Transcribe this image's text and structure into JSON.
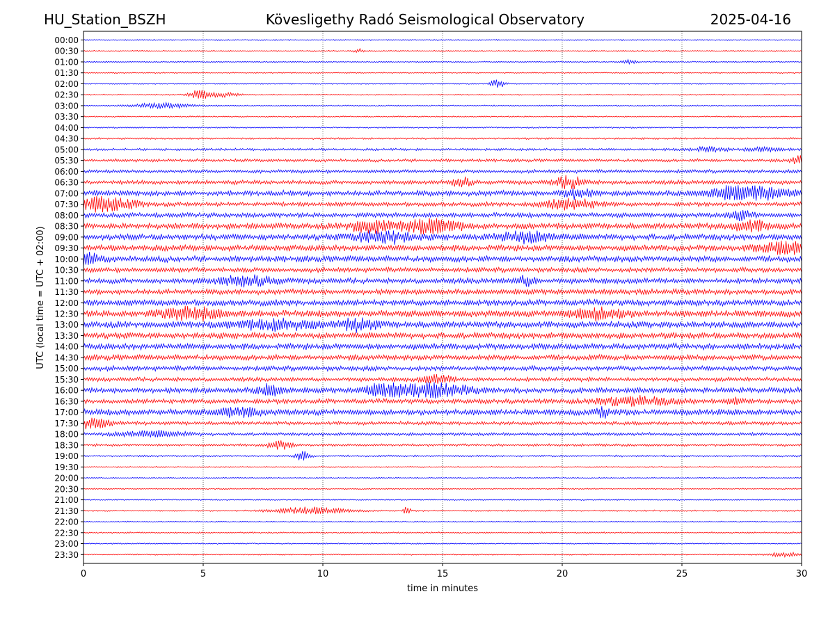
{
  "header": {
    "left": "HU_Station_BSZH",
    "center": "Kövesligethy Radó Seismological Observatory",
    "right": "2025-04-16"
  },
  "chart_data": {
    "type": "line",
    "subtype": "helicorder",
    "title": "Kövesligethy Radó Seismological Observatory",
    "xlabel": "time in minutes",
    "ylabel": "UTC (local time = UTC + 02:00)",
    "xlim": [
      0,
      30
    ],
    "xticks": [
      0,
      5,
      10,
      15,
      20,
      25,
      30
    ],
    "grid": "vertical dotted lines at 5, 10, 15, 20, 25",
    "colors": {
      "even": "#0000ff",
      "odd": "#ff0000",
      "frame": "#000000"
    },
    "rows": [
      "00:00",
      "00:30",
      "01:00",
      "01:30",
      "02:00",
      "02:30",
      "03:00",
      "03:30",
      "04:00",
      "04:30",
      "05:00",
      "05:30",
      "06:00",
      "06:30",
      "07:00",
      "07:30",
      "08:00",
      "08:30",
      "09:00",
      "09:30",
      "10:00",
      "10:30",
      "11:00",
      "11:30",
      "12:00",
      "12:30",
      "13:00",
      "13:30",
      "14:00",
      "14:30",
      "15:00",
      "15:30",
      "16:00",
      "16:30",
      "17:00",
      "17:30",
      "18:00",
      "18:30",
      "19:00",
      "19:30",
      "20:00",
      "20:30",
      "21:00",
      "21:30",
      "22:00",
      "22:30",
      "23:00",
      "23:30"
    ],
    "noise_level": [
      1,
      1,
      1,
      1,
      1,
      1,
      1,
      1,
      1.2,
      1.5,
      2,
      2.5,
      2.8,
      3.5,
      4.5,
      3.5,
      4,
      5,
      5,
      5,
      5,
      4,
      4.5,
      4.5,
      5,
      5.5,
      5.5,
      5,
      5,
      4.5,
      4,
      3.5,
      4.5,
      4,
      5,
      3,
      2.5,
      2,
      1.5,
      1,
      1,
      1,
      1,
      1.2,
      1,
      1.2,
      1,
      1
    ],
    "bursts": [
      {
        "row": "00:30",
        "minute": 11.5,
        "amp": 3,
        "duration": 0.2
      },
      {
        "row": "01:00",
        "minute": 22.8,
        "amp": 3,
        "duration": 0.3
      },
      {
        "row": "02:00",
        "minute": 17.3,
        "amp": 6,
        "duration": 0.3
      },
      {
        "row": "02:30",
        "minute": 4.8,
        "amp": 6,
        "duration": 0.4
      },
      {
        "row": "02:30",
        "minute": 5.8,
        "amp": 3,
        "duration": 0.8
      },
      {
        "row": "03:00",
        "minute": 3.3,
        "amp": 4,
        "duration": 1.2
      },
      {
        "row": "05:00",
        "minute": 26,
        "amp": 3,
        "duration": 0.8
      },
      {
        "row": "05:00",
        "minute": 28.5,
        "amp": 3,
        "duration": 0.8
      },
      {
        "row": "05:30",
        "minute": 29.9,
        "amp": 6,
        "duration": 0.3
      },
      {
        "row": "06:30",
        "minute": 15.8,
        "amp": 7,
        "duration": 0.4
      },
      {
        "row": "06:30",
        "minute": 20.3,
        "amp": 8,
        "duration": 0.6
      },
      {
        "row": "07:00",
        "minute": 27.8,
        "amp": 11,
        "duration": 1.5
      },
      {
        "row": "07:00",
        "minute": 20.6,
        "amp": 6,
        "duration": 0.6
      },
      {
        "row": "07:30",
        "minute": 0.9,
        "amp": 10,
        "duration": 1.2
      },
      {
        "row": "07:30",
        "minute": 20.3,
        "amp": 7,
        "duration": 1.2
      },
      {
        "row": "08:00",
        "minute": 27.5,
        "amp": 6,
        "duration": 0.5
      },
      {
        "row": "08:30",
        "minute": 11.9,
        "amp": 9,
        "duration": 0.8
      },
      {
        "row": "08:30",
        "minute": 14.5,
        "amp": 10,
        "duration": 1.2
      },
      {
        "row": "08:30",
        "minute": 27.9,
        "amp": 7,
        "duration": 0.8
      },
      {
        "row": "09:00",
        "minute": 12.5,
        "amp": 8,
        "duration": 1.2
      },
      {
        "row": "09:00",
        "minute": 18.5,
        "amp": 7,
        "duration": 1.2
      },
      {
        "row": "09:30",
        "minute": 29.5,
        "amp": 8,
        "duration": 1.2
      },
      {
        "row": "10:00",
        "minute": 0.2,
        "amp": 8,
        "duration": 0.5
      },
      {
        "row": "11:00",
        "minute": 6.8,
        "amp": 7,
        "duration": 1.2
      },
      {
        "row": "11:00",
        "minute": 18.5,
        "amp": 6,
        "duration": 0.4
      },
      {
        "row": "12:30",
        "minute": 4.5,
        "amp": 8,
        "duration": 1.2
      },
      {
        "row": "12:30",
        "minute": 21.5,
        "amp": 7,
        "duration": 1.2
      },
      {
        "row": "13:00",
        "minute": 11.5,
        "amp": 7,
        "duration": 0.8
      },
      {
        "row": "13:00",
        "minute": 8,
        "amp": 7,
        "duration": 1.5
      },
      {
        "row": "15:30",
        "minute": 14.8,
        "amp": 6,
        "duration": 0.6
      },
      {
        "row": "16:00",
        "minute": 14.5,
        "amp": 10,
        "duration": 1.5
      },
      {
        "row": "16:00",
        "minute": 7.8,
        "amp": 8,
        "duration": 0.5
      },
      {
        "row": "16:00",
        "minute": 12.4,
        "amp": 7,
        "duration": 0.7
      },
      {
        "row": "16:30",
        "minute": 23,
        "amp": 6,
        "duration": 1.5
      },
      {
        "row": "16:30",
        "minute": 27.3,
        "amp": 5,
        "duration": 0.3
      },
      {
        "row": "17:00",
        "minute": 6.5,
        "amp": 6,
        "duration": 0.8
      },
      {
        "row": "17:00",
        "minute": 21.7,
        "amp": 6,
        "duration": 0.3
      },
      {
        "row": "17:30",
        "minute": 0.3,
        "amp": 7,
        "duration": 0.8
      },
      {
        "row": "18:00",
        "minute": 2.8,
        "amp": 4,
        "duration": 1.5
      },
      {
        "row": "18:30",
        "minute": 8.2,
        "amp": 6,
        "duration": 0.5
      },
      {
        "row": "19:00",
        "minute": 9.2,
        "amp": 8,
        "duration": 0.3
      },
      {
        "row": "21:30",
        "minute": 9.5,
        "amp": 5,
        "duration": 1.5
      },
      {
        "row": "21:30",
        "minute": 13.5,
        "amp": 5,
        "duration": 0.15
      },
      {
        "row": "23:30",
        "minute": 29.3,
        "amp": 3,
        "duration": 0.8
      }
    ]
  }
}
